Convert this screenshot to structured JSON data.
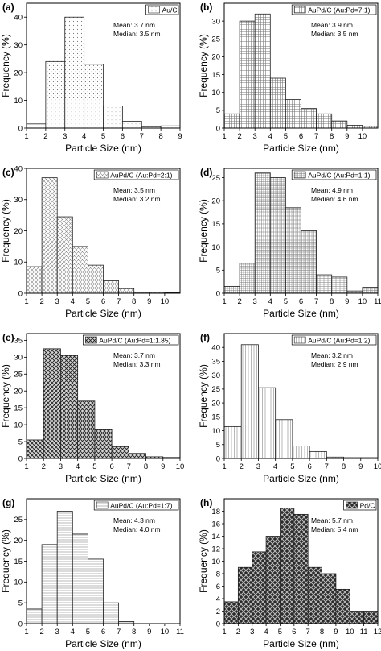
{
  "figure": {
    "xlabel": "Particle Size (nm)",
    "ylabel": "Frequency (%)"
  },
  "chart_data": [
    {
      "type": "bar",
      "panel_label": "(a)",
      "legend": "Au/C",
      "stats": [
        "Mean: 3.7 nm",
        "Median: 3.5 nm"
      ],
      "pattern": "dots",
      "bin_centers": [
        1.5,
        2.5,
        3.5,
        4.5,
        5.5,
        6.5,
        7.5,
        8.5
      ],
      "values": [
        1.5,
        24,
        40,
        23,
        8,
        2.5,
        0.5,
        0.8
      ],
      "xlim": [
        1,
        9
      ],
      "xticks": [
        1,
        2,
        3,
        4,
        5,
        6,
        7,
        8,
        9
      ],
      "ylim": [
        0,
        45
      ],
      "yticks": [
        0,
        10,
        20,
        30,
        40
      ],
      "xlabel": "Particle Size (nm)",
      "ylabel": "Frequency (%)"
    },
    {
      "type": "bar",
      "panel_label": "(b)",
      "legend": "AuPd/C (Au:Pd=7:1)",
      "stats": [
        "Mean: 3.9 nm",
        "Median: 3.5 nm"
      ],
      "pattern": "grid",
      "bin_centers": [
        1.5,
        2.5,
        3.5,
        4.5,
        5.5,
        6.5,
        7.5,
        8.5,
        9.5,
        10.5
      ],
      "values": [
        4,
        30,
        32,
        14,
        8,
        5.5,
        4,
        2,
        0.8,
        0.5
      ],
      "xlim": [
        1,
        11
      ],
      "xticks": [
        1,
        2,
        3,
        4,
        5,
        6,
        7,
        8,
        9,
        10
      ],
      "ylim": [
        0,
        35
      ],
      "yticks": [
        0,
        5,
        10,
        15,
        20,
        25,
        30
      ],
      "xlabel": "Particle Size (nm)",
      "ylabel": "Frequency (%)"
    },
    {
      "type": "bar",
      "panel_label": "(c)",
      "legend": "AuPd/C (Au:Pd=2:1)",
      "stats": [
        "Mean: 3.5 nm",
        "Median: 3.2 nm"
      ],
      "pattern": "crosshatch",
      "bin_centers": [
        1.5,
        2.5,
        3.5,
        4.5,
        5.5,
        6.5,
        7.5,
        8.5,
        9.5,
        10.5
      ],
      "values": [
        8.5,
        37,
        24.5,
        15,
        9,
        4,
        1.5,
        0.3,
        0.3,
        0.2
      ],
      "xlim": [
        1,
        11
      ],
      "xticks": [
        1,
        2,
        3,
        4,
        5,
        6,
        7,
        8,
        9,
        10
      ],
      "ylim": [
        0,
        40
      ],
      "yticks": [
        0,
        10,
        20,
        30,
        40
      ],
      "xlabel": "Particle Size (nm)",
      "ylabel": "Frequency (%)"
    },
    {
      "type": "bar",
      "panel_label": "(d)",
      "legend": "AuPd/C (Au:Pd=1:1)",
      "stats": [
        "Mean: 4.9 nm",
        "Median: 4.6 nm"
      ],
      "pattern": "fine-grid",
      "bin_centers": [
        1.5,
        2.5,
        3.5,
        4.5,
        5.5,
        6.5,
        7.5,
        8.5,
        9.5,
        10.5
      ],
      "values": [
        1.5,
        6.5,
        26,
        25,
        18.5,
        13.5,
        4,
        3.5,
        0.5,
        1.3
      ],
      "xlim": [
        1,
        11
      ],
      "xticks": [
        1,
        2,
        3,
        4,
        5,
        6,
        7,
        8,
        9,
        10,
        11
      ],
      "ylim": [
        0,
        27
      ],
      "yticks": [
        0,
        5,
        10,
        15,
        20,
        25
      ],
      "xlabel": "Particle Size (nm)",
      "ylabel": "Frequency (%)"
    },
    {
      "type": "bar",
      "panel_label": "(e)",
      "legend": "AuPd/C (Au:Pd=1:1.85)",
      "stats": [
        "Mean: 3.7 nm",
        "Median: 3.3 nm"
      ],
      "pattern": "mesh",
      "bin_centers": [
        1.5,
        2.5,
        3.5,
        4.5,
        5.5,
        6.5,
        7.5,
        8.5,
        9.5
      ],
      "values": [
        5.5,
        32.5,
        30.5,
        17,
        8.5,
        3.5,
        1.5,
        0.5,
        0.3
      ],
      "xlim": [
        1,
        10
      ],
      "xticks": [
        1,
        2,
        3,
        4,
        5,
        6,
        7,
        8,
        9,
        10
      ],
      "ylim": [
        0,
        37
      ],
      "yticks": [
        0,
        5,
        10,
        15,
        20,
        25,
        30,
        35
      ],
      "xlabel": "Particle Size (nm)",
      "ylabel": "Frequency (%)"
    },
    {
      "type": "bar",
      "panel_label": "(f)",
      "legend": "AuPd/C (Au:Pd=1:2)",
      "stats": [
        "Mean: 3.2 nm",
        "Median: 2.9 nm"
      ],
      "pattern": "vlines",
      "bin_centers": [
        1.5,
        2.5,
        3.5,
        4.5,
        5.5,
        6.5,
        7.5,
        8.5,
        9.5
      ],
      "values": [
        11.5,
        41,
        25.5,
        14,
        4.5,
        2.5,
        0.5,
        0.3,
        0.3
      ],
      "xlim": [
        1,
        10
      ],
      "xticks": [
        1,
        2,
        3,
        4,
        5,
        6,
        7,
        8,
        9,
        10
      ],
      "ylim": [
        0,
        45
      ],
      "yticks": [
        0,
        5,
        10,
        15,
        20,
        25,
        30,
        35,
        40
      ],
      "xlabel": "Particle Size (nm)",
      "ylabel": "Frequency (%)"
    },
    {
      "type": "bar",
      "panel_label": "(g)",
      "legend": "AuPd/C (Au:Pd=1:7)",
      "stats": [
        "Mean: 4.3 nm",
        "Median: 4.0 nm"
      ],
      "pattern": "hlines",
      "bin_centers": [
        1.5,
        2.5,
        3.5,
        4.5,
        5.5,
        6.5,
        7.5,
        8.5
      ],
      "values": [
        3.5,
        19,
        27,
        21.5,
        15.5,
        5,
        0.5,
        0
      ],
      "xlim": [
        1,
        11
      ],
      "xticks": [
        1,
        2,
        3,
        4,
        5,
        6,
        7,
        8,
        9,
        10,
        11
      ],
      "ylim": [
        0,
        30
      ],
      "yticks": [
        0,
        5,
        10,
        15,
        20,
        25
      ],
      "xlabel": "Particle Size (nm)",
      "ylabel": "Frequency (%)"
    },
    {
      "type": "bar",
      "panel_label": "(h)",
      "legend": "Pd/C",
      "stats": [
        "Mean: 5.7 nm",
        "Median: 5.4 nm"
      ],
      "pattern": "dark-diamond",
      "bin_centers": [
        1.5,
        2.5,
        3.5,
        4.5,
        5.5,
        6.5,
        7.5,
        8.5,
        9.5,
        10.5,
        11.5
      ],
      "values": [
        3.5,
        9,
        11.5,
        14,
        18.5,
        17.5,
        9,
        8,
        5.5,
        2,
        2
      ],
      "xlim": [
        1,
        12
      ],
      "xticks": [
        1,
        2,
        3,
        4,
        5,
        6,
        7,
        8,
        9,
        10,
        11,
        12
      ],
      "ylim": [
        0,
        20
      ],
      "yticks": [
        0,
        2,
        4,
        6,
        8,
        10,
        12,
        14,
        16,
        18
      ],
      "xlabel": "Particle Size (nm)",
      "ylabel": "Frequency (%)"
    }
  ]
}
